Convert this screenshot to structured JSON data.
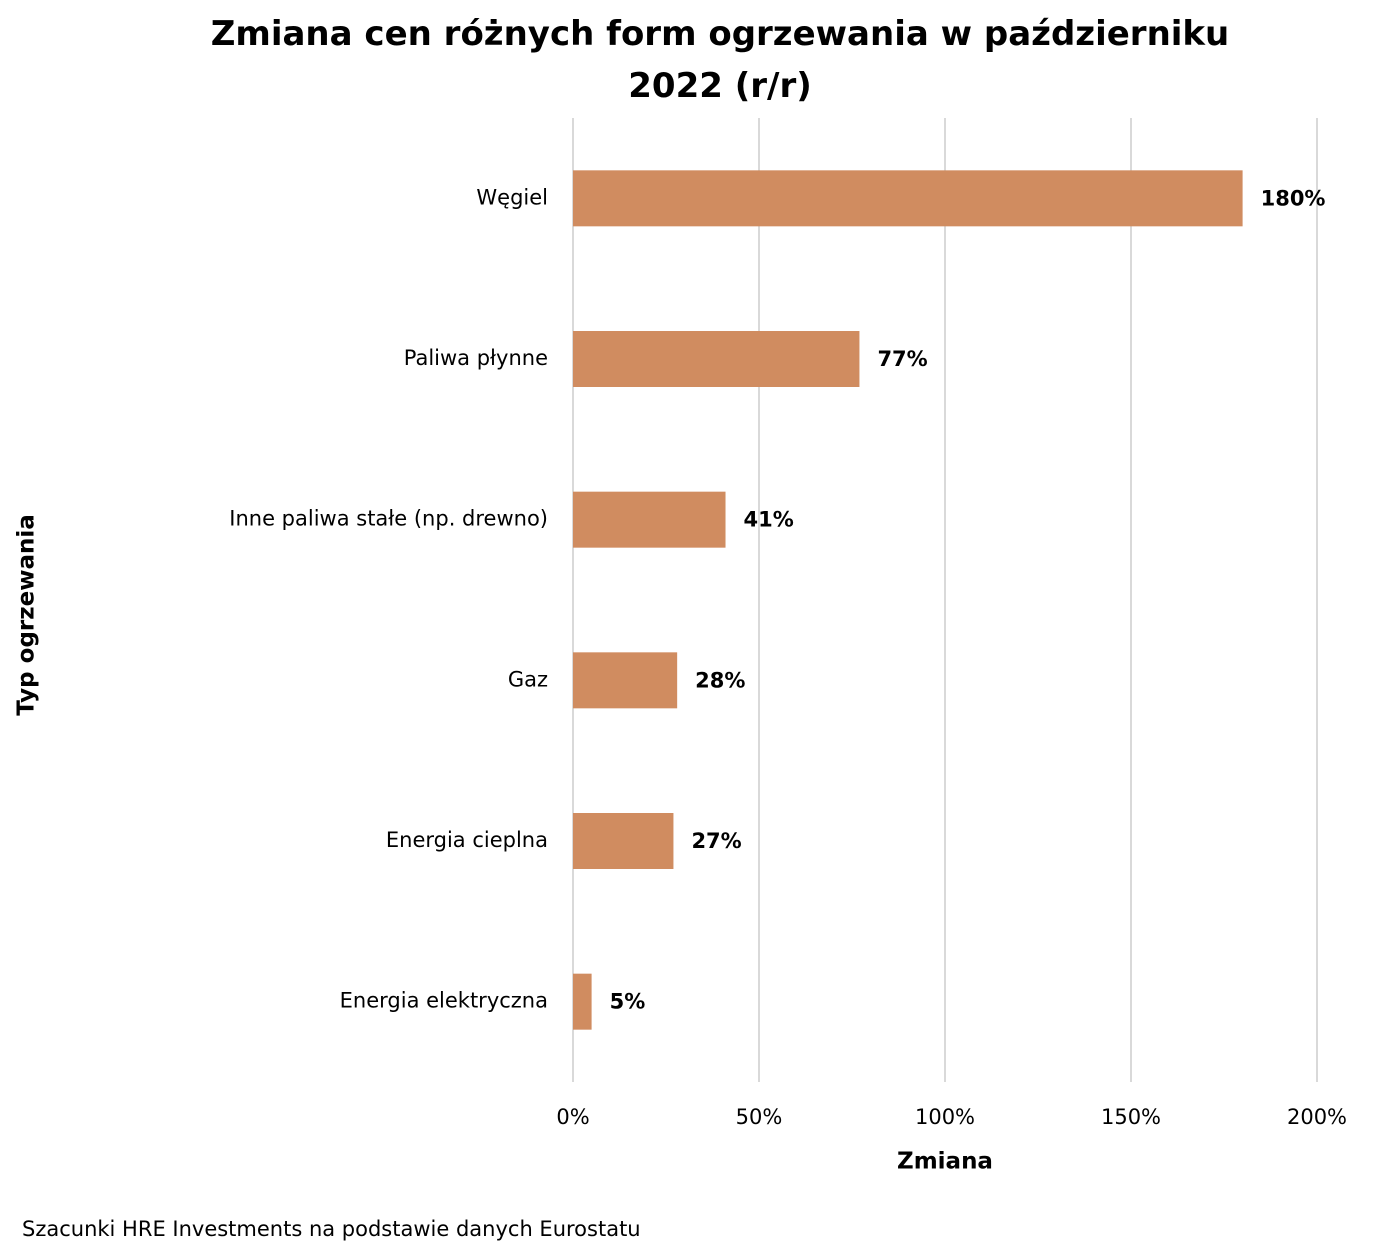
{
  "chart_data": {
    "type": "bar",
    "orientation": "horizontal",
    "title": "Zmiana cen różnych form ogrzewania w październiku 2022 (r/r)",
    "x_label": "Zmiana",
    "y_label": "Typ ogrzewania",
    "categories": [
      "Węgiel",
      "Paliwa płynne",
      "Inne paliwa stałe (np. drewno)",
      "Gaz",
      "Energia cieplna",
      "Energia elektryczna"
    ],
    "values": [
      180,
      77,
      41,
      28,
      27,
      5
    ],
    "value_labels": [
      "180%",
      "77%",
      "41%",
      "28%",
      "27%",
      "5%"
    ],
    "color": "#d08c60",
    "xlim": [
      0,
      200
    ],
    "xticks": [
      {
        "value": 0,
        "label": "0%"
      },
      {
        "value": 50,
        "label": "50%"
      },
      {
        "value": 100,
        "label": "100%"
      },
      {
        "value": 150,
        "label": "150%"
      },
      {
        "value": 200,
        "label": "200%"
      }
    ],
    "grid": true,
    "source": "Szacunki HRE Investments na podstawie danych Eurostatu"
  }
}
